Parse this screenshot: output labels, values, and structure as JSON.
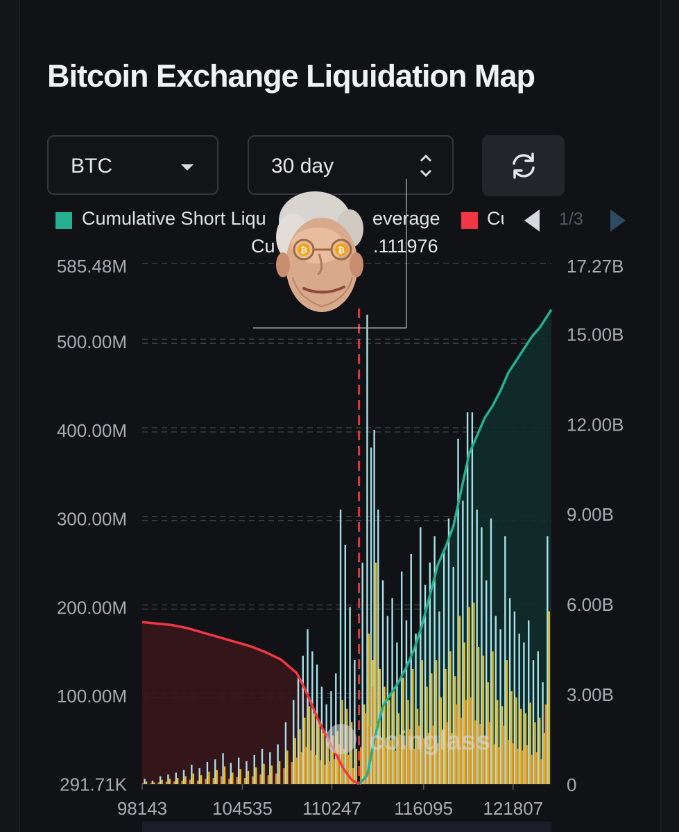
{
  "header": {
    "title": "Bitcoin Exchange Liquidation Map"
  },
  "controls": {
    "coin_select": {
      "value": "BTC"
    },
    "period_select": {
      "value": "30 day"
    },
    "refresh_icon": "refresh-icon"
  },
  "legend": {
    "items": [
      {
        "label": "Cumulative Short Liqu",
        "label_right": "everage",
        "color": "#25b08f"
      },
      {
        "label": "Cu",
        "color": "#f23645"
      }
    ],
    "pager": {
      "text": "1/3"
    }
  },
  "tooltip": {
    "text_left": "Cu",
    "text_right": ".111976"
  },
  "colors": {
    "short_cumulative": "#25b08f",
    "long_cumulative": "#f23645",
    "bar_high": "#a6e1ea",
    "bar_mid": "#f0b90b",
    "bar_low": "#f08a13",
    "current_price_line": "#e8323c"
  },
  "chart_data": {
    "type": "bar",
    "x_tick_labels": [
      "98143",
      "104535",
      "110247",
      "116095",
      "121807"
    ],
    "x_range": [
      98143,
      124250
    ],
    "left_axis": {
      "tick_labels": [
        "291.71K",
        "100.00M",
        "200.00M",
        "300.00M",
        "400.00M",
        "500.00M",
        "585.48M"
      ],
      "ylim": [
        291710,
        585480000
      ]
    },
    "right_axis": {
      "tick_labels": [
        "0",
        "3.00B",
        "6.00B",
        "9.00B",
        "12.00B",
        "15.00B",
        "17.27B"
      ],
      "ylim": [
        0,
        17270000000
      ]
    },
    "current_price": 111976,
    "grid": true,
    "bars_leverage_high": [
      {
        "x": 98300,
        "y": 6
      },
      {
        "x": 98800,
        "y": 4
      },
      {
        "x": 99300,
        "y": 9
      },
      {
        "x": 99800,
        "y": 11
      },
      {
        "x": 100300,
        "y": 13
      },
      {
        "x": 100800,
        "y": 16
      },
      {
        "x": 101300,
        "y": 22
      },
      {
        "x": 101800,
        "y": 18
      },
      {
        "x": 102300,
        "y": 25
      },
      {
        "x": 102800,
        "y": 28
      },
      {
        "x": 103300,
        "y": 35
      },
      {
        "x": 103800,
        "y": 24
      },
      {
        "x": 104300,
        "y": 30
      },
      {
        "x": 104800,
        "y": 26
      },
      {
        "x": 105300,
        "y": 33
      },
      {
        "x": 105800,
        "y": 40
      },
      {
        "x": 106300,
        "y": 36
      },
      {
        "x": 106800,
        "y": 45
      },
      {
        "x": 107300,
        "y": 70
      },
      {
        "x": 107800,
        "y": 95
      },
      {
        "x": 108100,
        "y": 120
      },
      {
        "x": 108400,
        "y": 145
      },
      {
        "x": 108700,
        "y": 175
      },
      {
        "x": 109000,
        "y": 150
      },
      {
        "x": 109300,
        "y": 135
      },
      {
        "x": 109600,
        "y": 110
      },
      {
        "x": 109900,
        "y": 90
      },
      {
        "x": 110200,
        "y": 105
      },
      {
        "x": 110500,
        "y": 125
      },
      {
        "x": 110800,
        "y": 310
      },
      {
        "x": 111100,
        "y": 270
      },
      {
        "x": 111400,
        "y": 200
      },
      {
        "x": 111700,
        "y": 140
      },
      {
        "x": 112200,
        "y": 250
      },
      {
        "x": 112500,
        "y": 530
      },
      {
        "x": 112750,
        "y": 380
      },
      {
        "x": 112950,
        "y": 400
      },
      {
        "x": 113200,
        "y": 310
      },
      {
        "x": 113500,
        "y": 230
      },
      {
        "x": 113800,
        "y": 190
      },
      {
        "x": 114100,
        "y": 210
      },
      {
        "x": 114400,
        "y": 160
      },
      {
        "x": 114700,
        "y": 240
      },
      {
        "x": 115000,
        "y": 185
      },
      {
        "x": 115300,
        "y": 260
      },
      {
        "x": 115600,
        "y": 170
      },
      {
        "x": 115900,
        "y": 290
      },
      {
        "x": 116200,
        "y": 225
      },
      {
        "x": 116500,
        "y": 250
      },
      {
        "x": 116800,
        "y": 280
      },
      {
        "x": 117100,
        "y": 195
      },
      {
        "x": 117400,
        "y": 265
      },
      {
        "x": 117700,
        "y": 300
      },
      {
        "x": 118000,
        "y": 245
      },
      {
        "x": 118300,
        "y": 390
      },
      {
        "x": 118600,
        "y": 320
      },
      {
        "x": 118900,
        "y": 420
      },
      {
        "x": 119200,
        "y": 420
      },
      {
        "x": 119500,
        "y": 310
      },
      {
        "x": 119800,
        "y": 290
      },
      {
        "x": 120100,
        "y": 230
      },
      {
        "x": 120400,
        "y": 300
      },
      {
        "x": 120700,
        "y": 190
      },
      {
        "x": 121000,
        "y": 175
      },
      {
        "x": 121300,
        "y": 280
      },
      {
        "x": 121600,
        "y": 210
      },
      {
        "x": 121900,
        "y": 195
      },
      {
        "x": 122200,
        "y": 170
      },
      {
        "x": 122500,
        "y": 160
      },
      {
        "x": 122800,
        "y": 185
      },
      {
        "x": 123100,
        "y": 140
      },
      {
        "x": 123400,
        "y": 150
      },
      {
        "x": 123700,
        "y": 115
      },
      {
        "x": 124000,
        "y": 280
      }
    ],
    "bars_leverage_mid": [
      {
        "x": 98300,
        "y": 3
      },
      {
        "x": 98800,
        "y": 2
      },
      {
        "x": 99300,
        "y": 5
      },
      {
        "x": 99800,
        "y": 6
      },
      {
        "x": 100300,
        "y": 7
      },
      {
        "x": 100800,
        "y": 9
      },
      {
        "x": 101300,
        "y": 12
      },
      {
        "x": 101800,
        "y": 10
      },
      {
        "x": 102300,
        "y": 14
      },
      {
        "x": 102800,
        "y": 16
      },
      {
        "x": 103300,
        "y": 20
      },
      {
        "x": 103800,
        "y": 13
      },
      {
        "x": 104300,
        "y": 17
      },
      {
        "x": 104800,
        "y": 15
      },
      {
        "x": 105300,
        "y": 19
      },
      {
        "x": 105800,
        "y": 23
      },
      {
        "x": 106300,
        "y": 21
      },
      {
        "x": 106800,
        "y": 26
      },
      {
        "x": 107300,
        "y": 38
      },
      {
        "x": 107800,
        "y": 52
      },
      {
        "x": 108100,
        "y": 62
      },
      {
        "x": 108400,
        "y": 75
      },
      {
        "x": 108700,
        "y": 88
      },
      {
        "x": 109000,
        "y": 80
      },
      {
        "x": 109300,
        "y": 70
      },
      {
        "x": 109600,
        "y": 58
      },
      {
        "x": 109900,
        "y": 48
      },
      {
        "x": 110200,
        "y": 55
      },
      {
        "x": 110500,
        "y": 60
      },
      {
        "x": 110800,
        "y": 95
      },
      {
        "x": 111100,
        "y": 85
      },
      {
        "x": 111400,
        "y": 70
      },
      {
        "x": 111700,
        "y": 40
      },
      {
        "x": 112200,
        "y": 90
      },
      {
        "x": 112500,
        "y": 170
      },
      {
        "x": 112750,
        "y": 140
      },
      {
        "x": 112950,
        "y": 250
      },
      {
        "x": 113200,
        "y": 130
      },
      {
        "x": 113500,
        "y": 110
      },
      {
        "x": 113800,
        "y": 95
      },
      {
        "x": 114100,
        "y": 105
      },
      {
        "x": 114400,
        "y": 80
      },
      {
        "x": 114700,
        "y": 120
      },
      {
        "x": 115000,
        "y": 95
      },
      {
        "x": 115300,
        "y": 130
      },
      {
        "x": 115600,
        "y": 85
      },
      {
        "x": 115900,
        "y": 140
      },
      {
        "x": 116200,
        "y": 110
      },
      {
        "x": 116500,
        "y": 125
      },
      {
        "x": 116800,
        "y": 140
      },
      {
        "x": 117100,
        "y": 98
      },
      {
        "x": 117400,
        "y": 130
      },
      {
        "x": 117700,
        "y": 150
      },
      {
        "x": 118000,
        "y": 122
      },
      {
        "x": 118300,
        "y": 190
      },
      {
        "x": 118600,
        "y": 160
      },
      {
        "x": 118900,
        "y": 200
      },
      {
        "x": 119200,
        "y": 205
      },
      {
        "x": 119500,
        "y": 155
      },
      {
        "x": 119800,
        "y": 145
      },
      {
        "x": 120100,
        "y": 115
      },
      {
        "x": 120400,
        "y": 150
      },
      {
        "x": 120700,
        "y": 95
      },
      {
        "x": 121000,
        "y": 88
      },
      {
        "x": 121300,
        "y": 140
      },
      {
        "x": 121600,
        "y": 105
      },
      {
        "x": 121900,
        "y": 98
      },
      {
        "x": 122200,
        "y": 85
      },
      {
        "x": 122500,
        "y": 80
      },
      {
        "x": 122800,
        "y": 92
      },
      {
        "x": 123100,
        "y": 70
      },
      {
        "x": 123400,
        "y": 75
      },
      {
        "x": 123700,
        "y": 58
      },
      {
        "x": 124000,
        "y": 195
      }
    ],
    "bars_leverage_low": [
      {
        "x": 98300,
        "y": 1
      },
      {
        "x": 98800,
        "y": 1
      },
      {
        "x": 99300,
        "y": 2
      },
      {
        "x": 99800,
        "y": 3
      },
      {
        "x": 100300,
        "y": 3
      },
      {
        "x": 100800,
        "y": 4
      },
      {
        "x": 101300,
        "y": 5
      },
      {
        "x": 101800,
        "y": 4
      },
      {
        "x": 102300,
        "y": 6
      },
      {
        "x": 102800,
        "y": 7
      },
      {
        "x": 103300,
        "y": 9
      },
      {
        "x": 103800,
        "y": 6
      },
      {
        "x": 104300,
        "y": 8
      },
      {
        "x": 104800,
        "y": 7
      },
      {
        "x": 105300,
        "y": 9
      },
      {
        "x": 105800,
        "y": 11
      },
      {
        "x": 106300,
        "y": 10
      },
      {
        "x": 106800,
        "y": 12
      },
      {
        "x": 107300,
        "y": 18
      },
      {
        "x": 107800,
        "y": 25
      },
      {
        "x": 108100,
        "y": 30
      },
      {
        "x": 108400,
        "y": 36
      },
      {
        "x": 108700,
        "y": 42
      },
      {
        "x": 109000,
        "y": 38
      },
      {
        "x": 109300,
        "y": 33
      },
      {
        "x": 109600,
        "y": 27
      },
      {
        "x": 109900,
        "y": 22
      },
      {
        "x": 110200,
        "y": 26
      },
      {
        "x": 110500,
        "y": 28
      },
      {
        "x": 110800,
        "y": 45
      },
      {
        "x": 111100,
        "y": 40
      },
      {
        "x": 111400,
        "y": 33
      },
      {
        "x": 111700,
        "y": 18
      },
      {
        "x": 112200,
        "y": 42
      },
      {
        "x": 112500,
        "y": 80
      },
      {
        "x": 112750,
        "y": 65
      },
      {
        "x": 112950,
        "y": 110
      },
      {
        "x": 113200,
        "y": 60
      },
      {
        "x": 113500,
        "y": 52
      },
      {
        "x": 113800,
        "y": 44
      },
      {
        "x": 114100,
        "y": 50
      },
      {
        "x": 114400,
        "y": 38
      },
      {
        "x": 114700,
        "y": 56
      },
      {
        "x": 115000,
        "y": 44
      },
      {
        "x": 115300,
        "y": 62
      },
      {
        "x": 115600,
        "y": 40
      },
      {
        "x": 115900,
        "y": 66
      },
      {
        "x": 116200,
        "y": 52
      },
      {
        "x": 116500,
        "y": 58
      },
      {
        "x": 116800,
        "y": 66
      },
      {
        "x": 117100,
        "y": 46
      },
      {
        "x": 117400,
        "y": 62
      },
      {
        "x": 117700,
        "y": 70
      },
      {
        "x": 118000,
        "y": 58
      },
      {
        "x": 118300,
        "y": 90
      },
      {
        "x": 118600,
        "y": 75
      },
      {
        "x": 118900,
        "y": 95
      },
      {
        "x": 119200,
        "y": 98
      },
      {
        "x": 119500,
        "y": 72
      },
      {
        "x": 119800,
        "y": 68
      },
      {
        "x": 120100,
        "y": 54
      },
      {
        "x": 120400,
        "y": 70
      },
      {
        "x": 120700,
        "y": 45
      },
      {
        "x": 121000,
        "y": 42
      },
      {
        "x": 121300,
        "y": 66
      },
      {
        "x": 121600,
        "y": 50
      },
      {
        "x": 121900,
        "y": 46
      },
      {
        "x": 122200,
        "y": 40
      },
      {
        "x": 122500,
        "y": 38
      },
      {
        "x": 122800,
        "y": 44
      },
      {
        "x": 123100,
        "y": 33
      },
      {
        "x": 123400,
        "y": 36
      },
      {
        "x": 123700,
        "y": 28
      },
      {
        "x": 124000,
        "y": 90
      }
    ],
    "series": [
      {
        "name": "Cumulative Short Liqu",
        "axis": "right",
        "points": [
          {
            "x": 112000,
            "y": 0
          },
          {
            "x": 112500,
            "y": 0.3
          },
          {
            "x": 113000,
            "y": 1.6
          },
          {
            "x": 113500,
            "y": 2.6
          },
          {
            "x": 114000,
            "y": 3.0
          },
          {
            "x": 114500,
            "y": 3.4
          },
          {
            "x": 115000,
            "y": 3.9
          },
          {
            "x": 115500,
            "y": 4.5
          },
          {
            "x": 116000,
            "y": 5.3
          },
          {
            "x": 116500,
            "y": 6.3
          },
          {
            "x": 117000,
            "y": 7.3
          },
          {
            "x": 117500,
            "y": 7.9
          },
          {
            "x": 118000,
            "y": 8.6
          },
          {
            "x": 118500,
            "y": 9.8
          },
          {
            "x": 119000,
            "y": 11.0
          },
          {
            "x": 119500,
            "y": 11.6
          },
          {
            "x": 120000,
            "y": 12.2
          },
          {
            "x": 120500,
            "y": 12.6
          },
          {
            "x": 121000,
            "y": 13.1
          },
          {
            "x": 121500,
            "y": 13.7
          },
          {
            "x": 122000,
            "y": 14.1
          },
          {
            "x": 122500,
            "y": 14.5
          },
          {
            "x": 123000,
            "y": 14.9
          },
          {
            "x": 123500,
            "y": 15.2
          },
          {
            "x": 124000,
            "y": 15.6
          },
          {
            "x": 124250,
            "y": 15.8
          }
        ]
      },
      {
        "name": "Cu",
        "axis": "right",
        "points": [
          {
            "x": 98143,
            "y": 5.4
          },
          {
            "x": 99000,
            "y": 5.35
          },
          {
            "x": 100000,
            "y": 5.3
          },
          {
            "x": 101000,
            "y": 5.2
          },
          {
            "x": 102000,
            "y": 5.05
          },
          {
            "x": 103000,
            "y": 4.9
          },
          {
            "x": 104000,
            "y": 4.75
          },
          {
            "x": 105000,
            "y": 4.6
          },
          {
            "x": 106000,
            "y": 4.4
          },
          {
            "x": 107000,
            "y": 4.15
          },
          {
            "x": 108000,
            "y": 3.7
          },
          {
            "x": 108500,
            "y": 3.2
          },
          {
            "x": 109000,
            "y": 2.6
          },
          {
            "x": 109500,
            "y": 2.0
          },
          {
            "x": 110000,
            "y": 1.5
          },
          {
            "x": 110500,
            "y": 1.0
          },
          {
            "x": 111000,
            "y": 0.5
          },
          {
            "x": 111500,
            "y": 0.15
          },
          {
            "x": 111976,
            "y": 0
          }
        ]
      }
    ]
  }
}
